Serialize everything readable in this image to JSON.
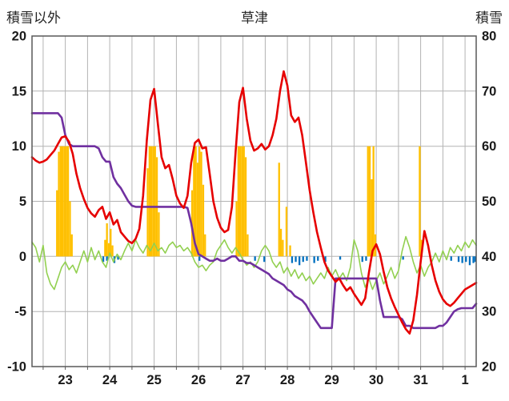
{
  "header": {
    "left_axis_title": "積雪以外",
    "title": "草津",
    "right_axis_title": "積雪"
  },
  "chart_data": {
    "type": "line",
    "title": "草津",
    "grid_on": true,
    "grid_color": "#b3b3b3",
    "border_color": "#595959",
    "text_color": "#1a1a1a",
    "left_axis": {
      "label": "積雪以外",
      "min": -10,
      "max": 20,
      "ticks": [
        "20",
        "15",
        "10",
        "5",
        "0",
        "-5",
        "-10"
      ]
    },
    "right_axis": {
      "label": "積雪",
      "min": 20,
      "max": 80,
      "ticks": [
        "80",
        "70",
        "60",
        "50",
        "40",
        "30",
        "20"
      ]
    },
    "x_axis": {
      "day_labels": [
        "23",
        "24",
        "25",
        "26",
        "27",
        "28",
        "29",
        "30",
        "31",
        "1"
      ],
      "hours_total": 240,
      "grid_start_hour": 6,
      "minor_grid_hours": 12,
      "first_label_center_hour": 18,
      "label_spacing_hours": 24
    },
    "series": [
      {
        "name": "red-line",
        "color": "#e60000",
        "width": 2.6,
        "axis": "left",
        "step": 2,
        "values": [
          9.0,
          8.7,
          8.5,
          8.6,
          8.8,
          9.2,
          9.6,
          10.2,
          10.8,
          10.9,
          10.4,
          9.3,
          7.5,
          6.2,
          5.2,
          4.4,
          3.9,
          3.6,
          4.2,
          4.5,
          3.4,
          4.0,
          2.9,
          3.3,
          2.2,
          1.8,
          1.4,
          1.2,
          1.6,
          2.5,
          5.5,
          10.5,
          14.2,
          15.2,
          12.0,
          9.0,
          8.0,
          8.3,
          7.0,
          5.5,
          4.8,
          4.4,
          5.5,
          8.5,
          10.3,
          10.6,
          9.8,
          9.9,
          7.5,
          5.0,
          3.5,
          2.6,
          2.2,
          2.4,
          4.5,
          9.5,
          14.0,
          15.3,
          12.5,
          10.5,
          9.6,
          9.8,
          10.2,
          9.7,
          10.0,
          11.0,
          12.5,
          15.0,
          16.8,
          15.5,
          12.8,
          12.2,
          12.6,
          11.0,
          8.5,
          6.0,
          4.0,
          2.2,
          0.8,
          -0.5,
          -1.3,
          -1.8,
          -2.3,
          -2.0,
          -2.6,
          -3.1,
          -2.8,
          -3.4,
          -3.9,
          -4.4,
          -3.8,
          -1.5,
          0.5,
          1.1,
          0.2,
          -1.4,
          -2.8,
          -3.8,
          -4.6,
          -5.3,
          -6.0,
          -6.6,
          -7.0,
          -5.8,
          -3.5,
          -0.5,
          2.3,
          1.0,
          -0.8,
          -2.2,
          -3.2,
          -3.9,
          -4.3,
          -4.5,
          -4.2,
          -3.8,
          -3.4,
          -3.0,
          -2.8,
          -2.6,
          -2.4
        ]
      },
      {
        "name": "purple-line",
        "color": "#7030a0",
        "width": 2.6,
        "axis": "left",
        "step": 2,
        "values": [
          13,
          13,
          13,
          13,
          13,
          13,
          13,
          13,
          12.6,
          11.0,
          10.2,
          10,
          10,
          10,
          10,
          10,
          10,
          10,
          9.8,
          9.0,
          8.6,
          8.6,
          7.2,
          6.6,
          6.2,
          5.6,
          5.0,
          4.6,
          4.5,
          4.5,
          4.5,
          4.5,
          4.5,
          4.5,
          4.5,
          4.5,
          4.5,
          4.5,
          4.5,
          4.5,
          4.5,
          4.5,
          4.4,
          3.0,
          1.2,
          0.2,
          0.0,
          -0.2,
          -0.4,
          -0.4,
          -0.2,
          -0.4,
          -0.4,
          -0.2,
          0.0,
          0.0,
          -0.4,
          -0.4,
          -0.6,
          -0.6,
          -0.8,
          -1.0,
          -1.2,
          -1.4,
          -1.6,
          -2.0,
          -2.2,
          -2.4,
          -2.6,
          -3.0,
          -3.2,
          -3.6,
          -3.8,
          -4.0,
          -4.4,
          -5.0,
          -5.5,
          -6.0,
          -6.5,
          -6.5,
          -6.5,
          -6.5,
          -2.0,
          -2.0,
          -2.0,
          -2.0,
          -2.0,
          -2.0,
          -2.0,
          -2.0,
          -2.0,
          -2.0,
          -2.0,
          -2.0,
          -4.0,
          -5.5,
          -5.5,
          -5.5,
          -5.5,
          -5.5,
          -5.7,
          -6.3,
          -6.3,
          -6.5,
          -6.5,
          -6.5,
          -6.5,
          -6.5,
          -6.5,
          -6.5,
          -6.3,
          -6.3,
          -6.0,
          -5.5,
          -5.0,
          -4.8,
          -4.7,
          -4.7,
          -4.7,
          -4.7,
          -4.3
        ]
      },
      {
        "name": "green-line",
        "color": "#92d050",
        "width": 1.6,
        "axis": "left",
        "step": 2,
        "values": [
          1.3,
          0.8,
          -0.5,
          1.0,
          -1.5,
          -2.5,
          -3.0,
          -2.0,
          -1.0,
          -0.5,
          -1.2,
          -0.8,
          -1.5,
          -0.5,
          0.5,
          -0.5,
          0.8,
          -0.3,
          0.5,
          -0.5,
          -1.0,
          0.3,
          -0.5,
          0.2,
          -0.3,
          0.5,
          1.2,
          0.5,
          1.5,
          0.8,
          0.3,
          1.0,
          0.5,
          1.2,
          0.5,
          0.8,
          0.3,
          1.0,
          1.3,
          0.8,
          1.0,
          0.5,
          0.8,
          0.3,
          -0.5,
          -1.0,
          -0.8,
          -1.3,
          -0.8,
          -0.5,
          0.5,
          1.0,
          1.5,
          0.8,
          0.3,
          0.8,
          0.3,
          -0.3,
          -0.8,
          -0.5,
          -1.0,
          -0.5,
          0.5,
          1.0,
          0.5,
          -0.5,
          -1.0,
          -0.5,
          -1.5,
          -1.0,
          -1.8,
          -1.2,
          -2.0,
          -1.5,
          -2.2,
          -1.8,
          -2.5,
          -2.0,
          -1.5,
          -2.0,
          -1.0,
          -1.8,
          -1.2,
          -2.0,
          -1.5,
          -2.2,
          -1.0,
          1.5,
          0.5,
          -1.5,
          -2.8,
          -2.0,
          -3.0,
          -2.2,
          -1.5,
          -2.5,
          -1.8,
          -1.0,
          -2.0,
          -1.3,
          0.5,
          1.8,
          0.8,
          -0.5,
          -1.5,
          -0.8,
          -1.8,
          -1.0,
          -0.5,
          0.3,
          -0.5,
          0.5,
          -0.3,
          0.8,
          0.3,
          1.0,
          0.5,
          1.3,
          0.8,
          1.5,
          1.0
        ]
      }
    ],
    "bars": [
      {
        "name": "orange-bars",
        "color": "#ffc000",
        "points": [
          [
            13,
            6
          ],
          [
            14,
            9.5
          ],
          [
            15,
            10
          ],
          [
            16,
            10
          ],
          [
            17,
            10
          ],
          [
            18,
            10
          ],
          [
            19,
            10
          ],
          [
            20,
            5
          ],
          [
            21,
            2
          ],
          [
            39,
            1.5
          ],
          [
            40,
            3
          ],
          [
            41,
            1.2
          ],
          [
            42,
            2.5
          ],
          [
            43,
            1
          ],
          [
            62,
            8
          ],
          [
            63,
            10
          ],
          [
            64,
            10
          ],
          [
            65,
            10
          ],
          [
            66,
            10
          ],
          [
            67,
            9
          ],
          [
            68,
            4
          ],
          [
            86,
            6
          ],
          [
            87,
            10
          ],
          [
            88,
            10
          ],
          [
            89,
            8.5
          ],
          [
            90,
            10
          ],
          [
            91,
            9.5
          ],
          [
            92,
            6.5
          ],
          [
            93,
            2
          ],
          [
            110,
            5
          ],
          [
            111,
            10
          ],
          [
            112,
            10
          ],
          [
            113,
            10
          ],
          [
            114,
            10
          ],
          [
            115,
            9
          ],
          [
            116,
            2
          ],
          [
            133,
            8.5
          ],
          [
            134,
            2.5
          ],
          [
            135,
            1.5
          ],
          [
            137,
            4.5
          ],
          [
            139,
            1
          ],
          [
            181,
            10
          ],
          [
            182,
            10
          ],
          [
            183,
            7
          ],
          [
            184,
            10
          ],
          [
            185,
            2
          ],
          [
            209,
            10
          ],
          [
            210,
            1.5
          ]
        ]
      },
      {
        "name": "blue-bars",
        "color": "#0070c0",
        "points": [
          [
            38,
            -0.5
          ],
          [
            40,
            -0.4
          ],
          [
            44,
            -0.6
          ],
          [
            46,
            -0.3
          ],
          [
            90,
            -0.4
          ],
          [
            120,
            -0.4
          ],
          [
            125,
            -0.5
          ],
          [
            140,
            -0.6
          ],
          [
            142,
            -0.5
          ],
          [
            144,
            -0.8
          ],
          [
            146,
            -0.5
          ],
          [
            148,
            -0.4
          ],
          [
            152,
            -0.6
          ],
          [
            154,
            -0.4
          ],
          [
            158,
            -0.5
          ],
          [
            166,
            -0.3
          ],
          [
            178,
            -0.5
          ],
          [
            180,
            -0.4
          ],
          [
            200,
            -0.3
          ],
          [
            226,
            -0.4
          ],
          [
            230,
            -0.5
          ],
          [
            232,
            -0.6
          ],
          [
            234,
            -0.5
          ],
          [
            236,
            -0.8
          ],
          [
            238,
            -0.6
          ],
          [
            239,
            -0.5
          ]
        ]
      }
    ]
  }
}
